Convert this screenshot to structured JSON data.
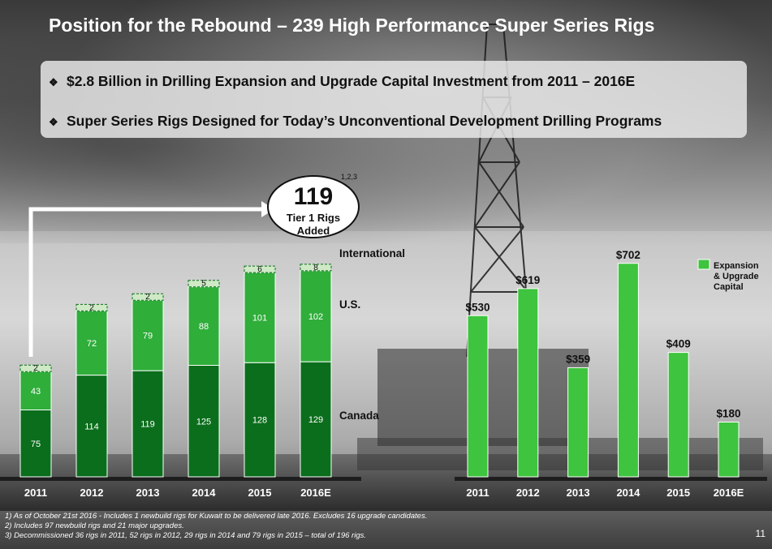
{
  "slide": {
    "title": "Position for the Rebound – 239 High Performance Super Series Rigs",
    "bullets": [
      "$2.8 Billion in Drilling Expansion and Upgrade Capital Investment from 2011 – 2016E",
      "Super Series Rigs Designed for Today’s Unconventional Development Drilling Programs"
    ],
    "bullet_marker": "❖",
    "callout": {
      "value": "119",
      "label_line1": "Tier 1 Rigs",
      "label_line2": "Added",
      "superscript": "1,2,3"
    },
    "footnotes": [
      "1)  As of October 21st 2016 - Includes 1 newbuild rigs for Kuwait  to be delivered late 2016. Excludes 16 upgrade candidates.",
      "2)  Includes 97 newbuild rigs and 21 major upgrades.",
      "3)  Decommissioned 36 rigs in 2011, 52 rigs in 2012, 29 rigs in 2014 and 79 rigs in 2015 – total of 196 rigs."
    ],
    "page_number": "11"
  },
  "colors": {
    "dark_green": "#0b6e1c",
    "mid_green": "#2fae3a",
    "light_green": "#4cc94c",
    "bright_green": "#3ec43e"
  },
  "chart_data": [
    {
      "type": "bar",
      "stacked": true,
      "categories": [
        "2011",
        "2012",
        "2013",
        "2014",
        "2015",
        "2016E"
      ],
      "series": [
        {
          "name": "Canada",
          "values": [
            75,
            114,
            119,
            125,
            128,
            129
          ],
          "color": "#0b6e1c"
        },
        {
          "name": "U.S.",
          "values": [
            43,
            72,
            79,
            88,
            101,
            102
          ],
          "color": "#2fae3a"
        },
        {
          "name": "International",
          "values": [
            2,
            2,
            2,
            5,
            6,
            8
          ],
          "color": "#cfe9c6"
        }
      ]
    },
    {
      "type": "bar",
      "categories": [
        "2011",
        "2012",
        "2013",
        "2014",
        "2015",
        "2016E"
      ],
      "series": [
        {
          "name": "Expansion & Upgrade Capital",
          "values": [
            530,
            619,
            359,
            702,
            409,
            180
          ],
          "color": "#3ec43e"
        }
      ],
      "data_labels": [
        "$530",
        "$619",
        "$359",
        "$702",
        "$409",
        "$180"
      ],
      "legend": {
        "lines": [
          "Expansion",
          "& Upgrade",
          "Capital"
        ],
        "position": "top-right"
      }
    }
  ]
}
